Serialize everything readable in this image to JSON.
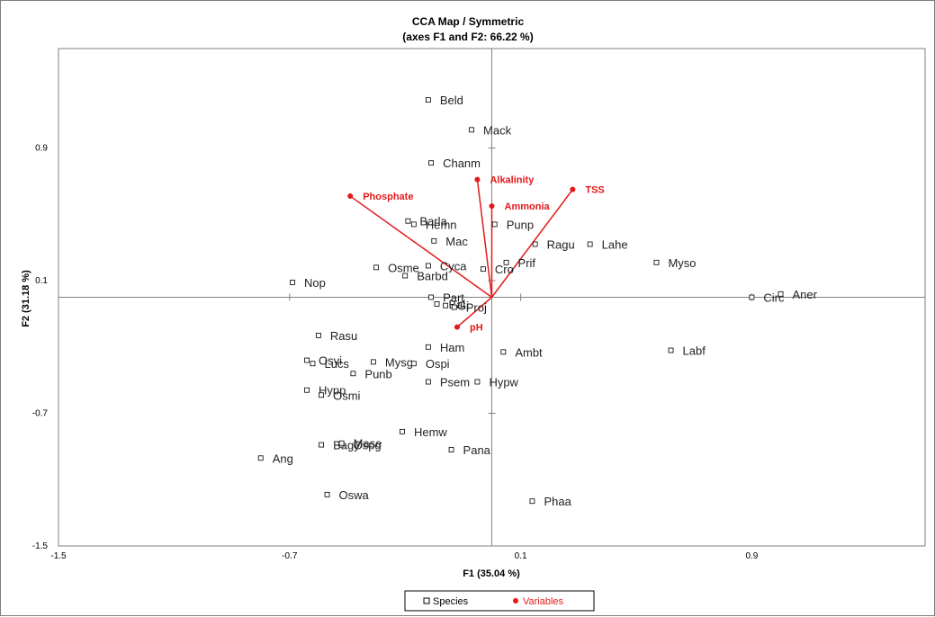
{
  "chart_data": {
    "type": "scatter",
    "title": "CCA Map / Symmetric",
    "subtitle": "(axes F1 and F2: 66.22 %)",
    "xlabel": "F1 (35.04 %)",
    "ylabel": "F2 (31.18 %)",
    "xlim": [
      -1.5,
      1.5
    ],
    "ylim": [
      -1.5,
      1.5
    ],
    "xticks": [
      "-1.5",
      "-0.7",
      "0.1",
      "0.9"
    ],
    "yticks": [
      "-1.5",
      "-0.7",
      "0.1",
      "0.9"
    ],
    "xtick_values": [
      -1.5,
      -0.7,
      0.1,
      0.9
    ],
    "ytick_values": [
      -1.5,
      -0.7,
      0.1,
      0.9
    ],
    "legend_position": "bottom",
    "series": [
      {
        "name": "Species",
        "color": "#000000",
        "marker": "open-square",
        "points": [
          {
            "label": "Beld",
            "x": -0.22,
            "y": 1.19
          },
          {
            "label": "Mack",
            "x": -0.07,
            "y": 1.01
          },
          {
            "label": "Chanm",
            "x": -0.21,
            "y": 0.81
          },
          {
            "label": "Barla",
            "x": -0.29,
            "y": 0.46
          },
          {
            "label": "Hemn",
            "x": -0.27,
            "y": 0.44
          },
          {
            "label": "Mac",
            "x": -0.2,
            "y": 0.34
          },
          {
            "label": "Punp",
            "x": 0.01,
            "y": 0.44
          },
          {
            "label": "Ragu",
            "x": 0.15,
            "y": 0.32
          },
          {
            "label": "Lahe",
            "x": 0.34,
            "y": 0.32
          },
          {
            "label": "Myso",
            "x": 0.57,
            "y": 0.21
          },
          {
            "label": "Prif",
            "x": 0.05,
            "y": 0.21
          },
          {
            "label": "Osme",
            "x": -0.4,
            "y": 0.18
          },
          {
            "label": "Cyca",
            "x": -0.22,
            "y": 0.19
          },
          {
            "label": "Cro",
            "x": -0.03,
            "y": 0.17
          },
          {
            "label": "Barbd",
            "x": -0.3,
            "y": 0.13
          },
          {
            "label": "Nop",
            "x": -0.69,
            "y": 0.09
          },
          {
            "label": "Part",
            "x": -0.21,
            "y": 0.0
          },
          {
            "label": "Bal",
            "x": -0.19,
            "y": -0.04
          },
          {
            "label": "Gi",
            "x": -0.16,
            "y": -0.05
          },
          {
            "label": "Proj",
            "x": -0.13,
            "y": -0.06
          },
          {
            "label": "Circ",
            "x": 0.9,
            "y": 0.0
          },
          {
            "label": "Aner",
            "x": 1.0,
            "y": 0.02
          },
          {
            "label": "Rasu",
            "x": -0.6,
            "y": -0.23
          },
          {
            "label": "Ham",
            "x": -0.22,
            "y": -0.3
          },
          {
            "label": "Ambt",
            "x": 0.04,
            "y": -0.33
          },
          {
            "label": "Labf",
            "x": 0.62,
            "y": -0.32
          },
          {
            "label": "Osvi",
            "x": -0.64,
            "y": -0.38
          },
          {
            "label": "Lucs",
            "x": -0.62,
            "y": -0.4
          },
          {
            "label": "Mysg",
            "x": -0.41,
            "y": -0.39
          },
          {
            "label": "Ospi",
            "x": -0.27,
            "y": -0.4
          },
          {
            "label": "Punb",
            "x": -0.48,
            "y": -0.46
          },
          {
            "label": "Psem",
            "x": -0.22,
            "y": -0.51
          },
          {
            "label": "Hypw",
            "x": -0.05,
            "y": -0.51
          },
          {
            "label": "Hypp",
            "x": -0.64,
            "y": -0.56
          },
          {
            "label": "Osmi",
            "x": -0.59,
            "y": -0.59
          },
          {
            "label": "Bagy",
            "x": -0.59,
            "y": -0.89
          },
          {
            "label": "Ospg",
            "x": -0.52,
            "y": -0.89
          },
          {
            "label": "Hemw",
            "x": -0.31,
            "y": -0.81
          },
          {
            "label": "Mase",
            "x": -0.52,
            "y": -0.88
          },
          {
            "label": "Pana",
            "x": -0.14,
            "y": -0.92
          },
          {
            "label": "Ang",
            "x": -0.8,
            "y": -0.97
          },
          {
            "label": "Oswa",
            "x": -0.57,
            "y": -1.19
          },
          {
            "label": "Phaa",
            "x": 0.14,
            "y": -1.23
          }
        ]
      },
      {
        "name": "Variables",
        "color": "#e31a1c",
        "marker": "filled-circle",
        "vectors": [
          {
            "label": "Phosphate",
            "x": -0.49,
            "y": 0.61
          },
          {
            "label": "Alkalinity",
            "x": -0.05,
            "y": 0.71
          },
          {
            "label": "Ammonia",
            "x": 0.0,
            "y": 0.55
          },
          {
            "label": "TSS",
            "x": 0.28,
            "y": 0.65
          },
          {
            "label": "pH",
            "x": -0.12,
            "y": -0.18
          }
        ]
      }
    ]
  },
  "legend": {
    "species_label": "Species",
    "variables_label": "Variables"
  }
}
